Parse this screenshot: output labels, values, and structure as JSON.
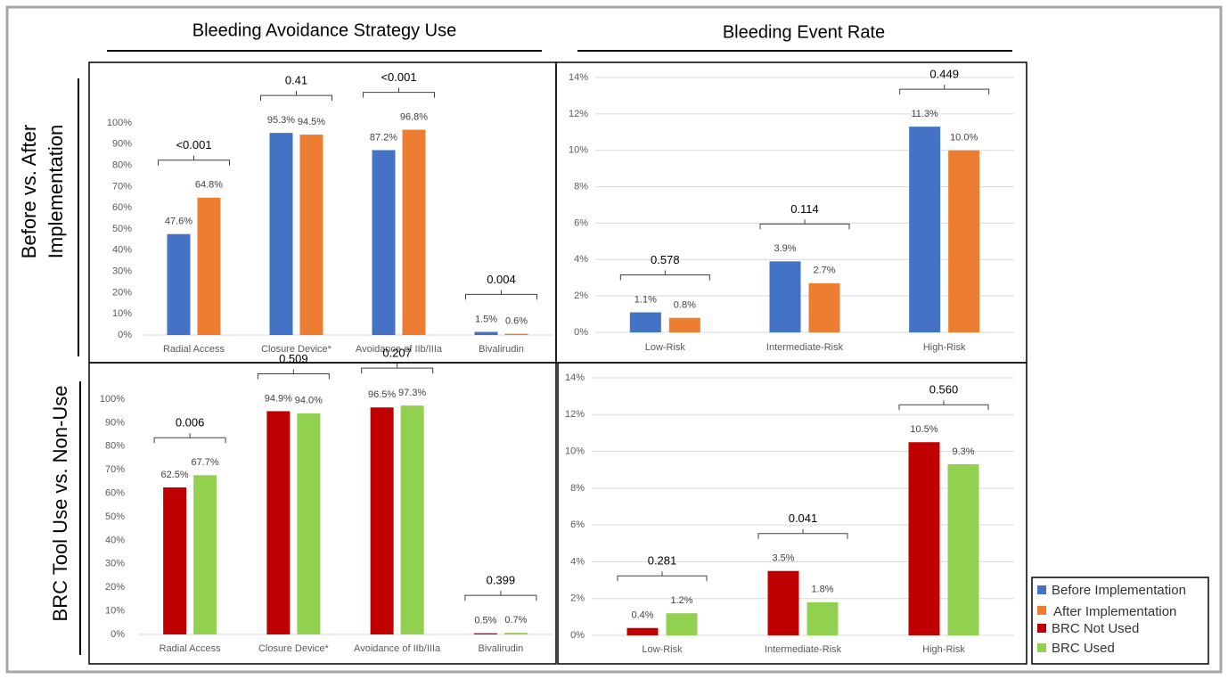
{
  "column_titles": [
    "Bleeding Avoidance Strategy Use",
    "Bleeding Event Rate"
  ],
  "row_titles": [
    "Before vs. After Implementation",
    "BRC Tool Use vs. Non-Use"
  ],
  "chart_data": [
    {
      "type": "bar",
      "categories": [
        "Radial Access",
        "Closure Device*",
        "Avoidance of IIb/IIIa",
        "Bivalirudin"
      ],
      "series": [
        {
          "name": "Before Implementation",
          "color": "#4472c4",
          "values": [
            47.6,
            95.3,
            87.2,
            1.5
          ],
          "value_labels": [
            "47.6%",
            "95.3%",
            "87.2%",
            "1.5%"
          ]
        },
        {
          "name": "After Implementation",
          "color": "#ed7d31",
          "values": [
            64.8,
            94.5,
            96.8,
            0.6
          ],
          "value_labels": [
            "64.8%",
            "94.5%",
            "96.8%",
            "0.6%"
          ]
        }
      ],
      "annotations": [
        "<0.001",
        "0.41",
        "<0.001",
        "0.004"
      ],
      "ylim": [
        0,
        100
      ],
      "yticks": [
        {
          "value": 0,
          "label": "0%"
        },
        {
          "value": 10,
          "label": "10%"
        },
        {
          "value": 20,
          "label": "20%"
        },
        {
          "value": 30,
          "label": "30%"
        },
        {
          "value": 40,
          "label": "40%"
        },
        {
          "value": 50,
          "label": "50%"
        },
        {
          "value": 60,
          "label": "60%"
        },
        {
          "value": 70,
          "label": "70%"
        },
        {
          "value": 80,
          "label": "80%"
        },
        {
          "value": 90,
          "label": "90%"
        },
        {
          "value": 100,
          "label": "100%"
        }
      ],
      "grid": false
    },
    {
      "type": "bar",
      "categories": [
        "Low-Risk",
        "Intermediate-Risk",
        "High-Risk"
      ],
      "series": [
        {
          "color": "#4472c4",
          "values": [
            1.1,
            3.9,
            11.3
          ],
          "value_labels": [
            "1.1%",
            "3.9%",
            "11.3%"
          ]
        },
        {
          "color": "#ed7d31",
          "values": [
            0.8,
            2.7,
            10.0
          ],
          "value_labels": [
            "0.8%",
            "2.7%",
            "10.0%"
          ]
        }
      ],
      "annotations": [
        "0.578",
        "0.114",
        "0.449"
      ],
      "ylim": [
        0,
        14
      ],
      "yticks": [
        {
          "value": 0,
          "label": "0%"
        },
        {
          "value": 2,
          "label": "2%"
        },
        {
          "value": 4,
          "label": "4%"
        },
        {
          "value": 6,
          "label": "6%"
        },
        {
          "value": 8,
          "label": "8%"
        },
        {
          "value": 10,
          "label": "10%"
        },
        {
          "value": 12,
          "label": "12%"
        },
        {
          "value": 14,
          "label": "14%"
        }
      ],
      "grid": true
    },
    {
      "type": "bar",
      "categories": [
        "Radial Access",
        "Closure Device*",
        "Avoidance of IIb/IIIa",
        "Bivalirudin"
      ],
      "series": [
        {
          "name": "BRC Not Used",
          "color": "#c00000",
          "values": [
            62.5,
            94.9,
            96.5,
            0.5
          ],
          "value_labels": [
            "62.5%",
            "94.9%",
            "96.5%",
            "0.5%"
          ]
        },
        {
          "name": "BRC Used",
          "color": "#92d050",
          "values": [
            67.7,
            94.0,
            97.3,
            0.7
          ],
          "value_labels": [
            "67.7%",
            "94.0%",
            "97.3%",
            "0.7%"
          ]
        }
      ],
      "annotations": [
        "0.006",
        "0.509",
        "0.207",
        "0.399"
      ],
      "ylim": [
        0,
        100
      ],
      "yticks": [
        {
          "value": 0,
          "label": "0%"
        },
        {
          "value": 10,
          "label": "10%"
        },
        {
          "value": 20,
          "label": "20%"
        },
        {
          "value": 30,
          "label": "30%"
        },
        {
          "value": 40,
          "label": "40%"
        },
        {
          "value": 50,
          "label": "50%"
        },
        {
          "value": 60,
          "label": "60%"
        },
        {
          "value": 70,
          "label": "70%"
        },
        {
          "value": 80,
          "label": "80%"
        },
        {
          "value": 90,
          "label": "90%"
        },
        {
          "value": 100,
          "label": "100%"
        }
      ],
      "grid": false
    },
    {
      "type": "bar",
      "categories": [
        "Low-Risk",
        "Intermediate-Risk",
        "High-Risk"
      ],
      "series": [
        {
          "color": "#c00000",
          "values": [
            0.4,
            3.5,
            10.5
          ],
          "value_labels": [
            "0.4%",
            "3.5%",
            "10.5%"
          ]
        },
        {
          "color": "#92d050",
          "values": [
            1.2,
            1.8,
            9.3
          ],
          "value_labels": [
            "1.2%",
            "1.8%",
            "9.3%"
          ]
        }
      ],
      "annotations": [
        "0.281",
        "0.041",
        "0.560"
      ],
      "ylim": [
        0,
        14
      ],
      "yticks": [
        {
          "value": 0,
          "label": "0%"
        },
        {
          "value": 2,
          "label": "2%"
        },
        {
          "value": 4,
          "label": "4%"
        },
        {
          "value": 6,
          "label": "6%"
        },
        {
          "value": 8,
          "label": "8%"
        },
        {
          "value": 10,
          "label": "10%"
        },
        {
          "value": 12,
          "label": "12%"
        },
        {
          "value": 14,
          "label": "14%"
        }
      ],
      "grid": true
    }
  ]
}
